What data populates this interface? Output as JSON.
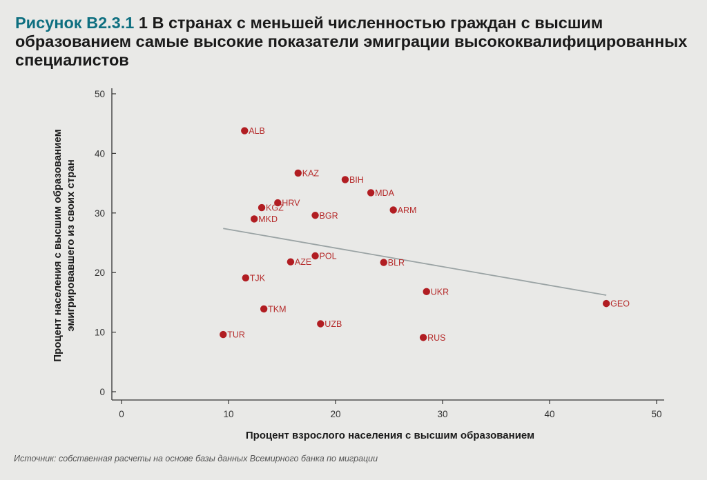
{
  "title": {
    "figure_label": "Рисунок B2.3.1",
    "text": "1 В странах с меньшей численностью граждан с высшим образованием самые высокие показатели эмиграции высококвалифицированных специалистов"
  },
  "source": "Источник: собственная расчеты на основе базы данных Всемирного банка по миграции",
  "colors": {
    "point": "#b11d22",
    "label": "#b52a2a",
    "trend": "#9aa3a4",
    "axis": "#333333",
    "figure_label": "#0e6f80"
  },
  "chart_data": {
    "type": "scatter",
    "xlabel": "Процент взрослого населения с высшим образованием",
    "ylabel_lines": [
      "Процент населения с высшим образованием",
      "эмигрировавшего из своих стран"
    ],
    "xlim": [
      0,
      50
    ],
    "ylim": [
      0,
      50
    ],
    "x_ticks": [
      0,
      10,
      20,
      30,
      40,
      50
    ],
    "y_ticks": [
      0,
      10,
      20,
      30,
      40,
      50
    ],
    "grid": false,
    "points": [
      {
        "label": "ALB",
        "x": 11.5,
        "y": 43.8
      },
      {
        "label": "KAZ",
        "x": 16.5,
        "y": 36.7
      },
      {
        "label": "BIH",
        "x": 20.9,
        "y": 35.6
      },
      {
        "label": "MDA",
        "x": 23.3,
        "y": 33.4
      },
      {
        "label": "HRV",
        "x": 14.6,
        "y": 31.7
      },
      {
        "label": "ARM",
        "x": 25.4,
        "y": 30.5
      },
      {
        "label": "KGZ",
        "x": 13.1,
        "y": 30.9
      },
      {
        "label": "BGR",
        "x": 18.1,
        "y": 29.6
      },
      {
        "label": "MKD",
        "x": 12.4,
        "y": 29.0
      },
      {
        "label": "POL",
        "x": 18.1,
        "y": 22.8
      },
      {
        "label": "AZE",
        "x": 15.8,
        "y": 21.8
      },
      {
        "label": "BLR",
        "x": 24.5,
        "y": 21.7
      },
      {
        "label": "TJK",
        "x": 11.6,
        "y": 19.1
      },
      {
        "label": "UKR",
        "x": 28.5,
        "y": 16.8
      },
      {
        "label": "GEO",
        "x": 45.3,
        "y": 14.8
      },
      {
        "label": "TKM",
        "x": 13.3,
        "y": 13.9
      },
      {
        "label": "UZB",
        "x": 18.6,
        "y": 11.4
      },
      {
        "label": "TUR",
        "x": 9.5,
        "y": 9.6
      },
      {
        "label": "RUS",
        "x": 28.2,
        "y": 9.1
      }
    ],
    "trendline": {
      "x": [
        9.5,
        45.3
      ],
      "y": [
        27.4,
        16.2
      ]
    }
  }
}
